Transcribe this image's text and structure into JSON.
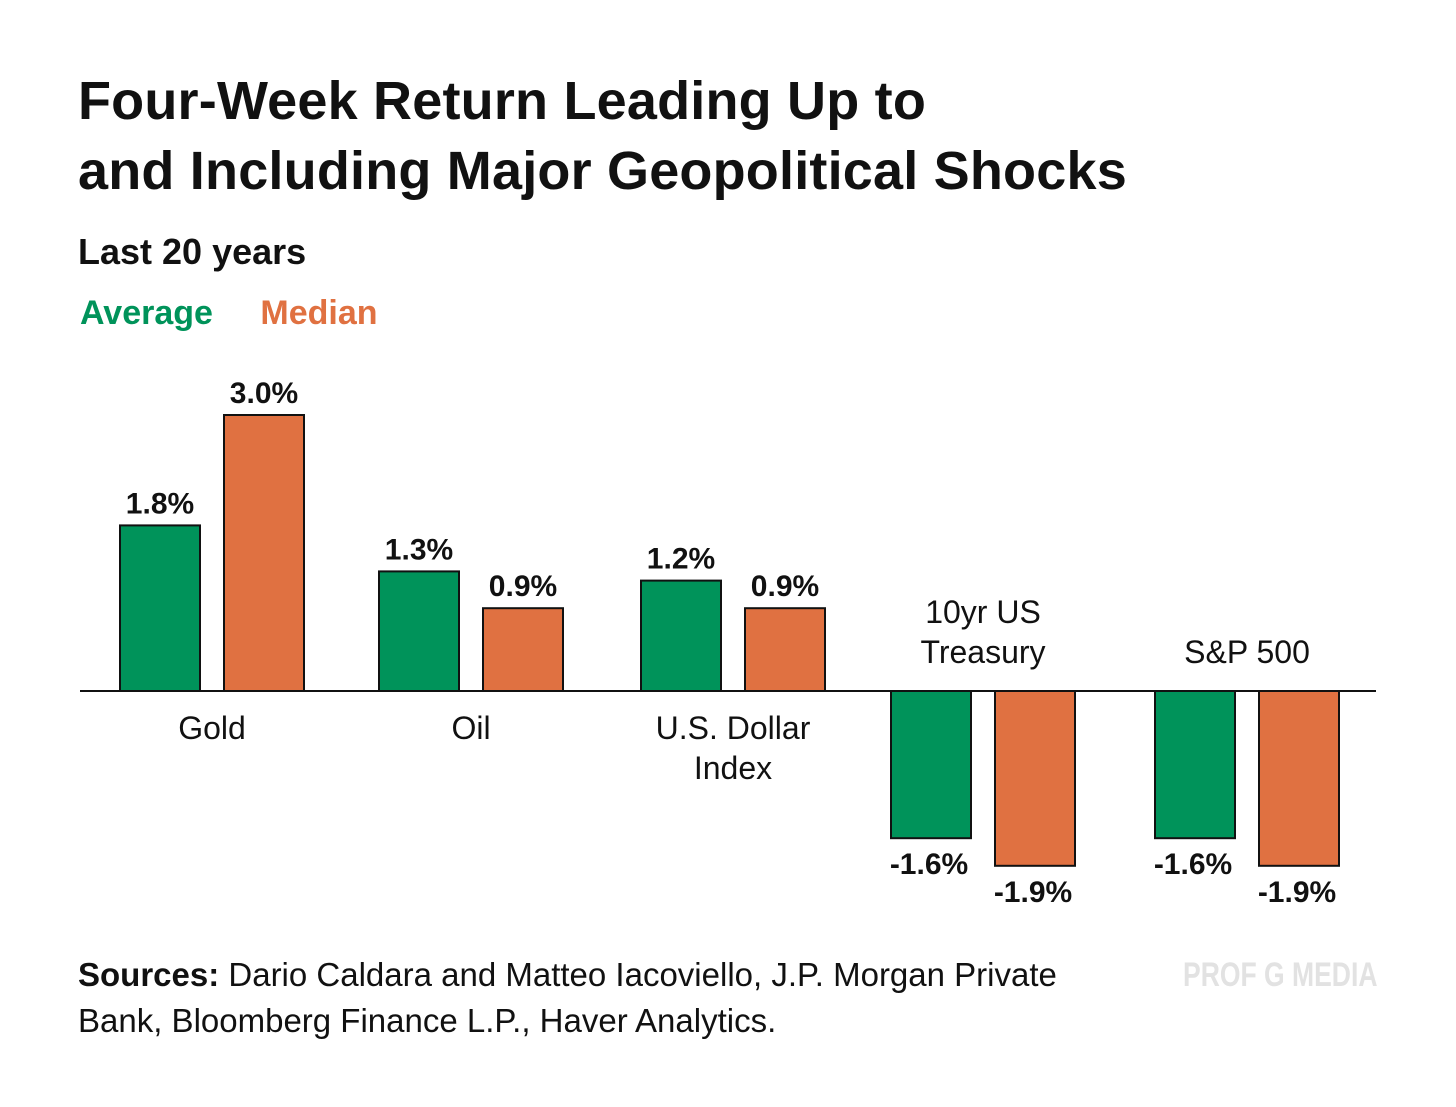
{
  "header": {
    "title_line1": "Four-Week Return Leading Up to",
    "title_line2": "and Including Major Geopolitical Shocks",
    "subtitle": "Last 20 years"
  },
  "legend": {
    "average": "Average",
    "median": "Median"
  },
  "colors": {
    "average": "#00935a",
    "median": "#e07141",
    "text": "#111111",
    "watermark": "#e2e2e2"
  },
  "chart_data": {
    "type": "bar",
    "title": "Four-Week Return Leading Up to and Including Major Geopolitical Shocks",
    "subtitle": "Last 20 years",
    "categories": [
      [
        "Gold"
      ],
      [
        "Oil"
      ],
      [
        "U.S. Dollar",
        "Index"
      ],
      [
        "10yr US",
        "Treasury"
      ],
      [
        "S&P 500"
      ]
    ],
    "series": [
      {
        "name": "Average",
        "values": [
          1.8,
          1.3,
          1.2,
          -1.6,
          -1.6
        ],
        "labels": [
          "1.8%",
          "1.3%",
          "1.2%",
          "-1.6%",
          "-1.6%"
        ]
      },
      {
        "name": "Median",
        "values": [
          3.0,
          0.9,
          0.9,
          -1.9,
          -1.9
        ],
        "labels": [
          "3.0%",
          "0.9%",
          "0.9%",
          "-1.9%",
          "-1.9%"
        ]
      }
    ],
    "unit": "%",
    "ylim": [
      -2.0,
      3.2
    ],
    "grid": false,
    "legend_position": "top-left"
  },
  "footer": {
    "sources_label": "Sources:",
    "sources_text": " Dario Caldara and Matteo Iacoviello, J.P. Morgan Private Bank, Bloomberg Finance L.P., Haver Analytics.",
    "brand": "PROF G MEDIA"
  }
}
